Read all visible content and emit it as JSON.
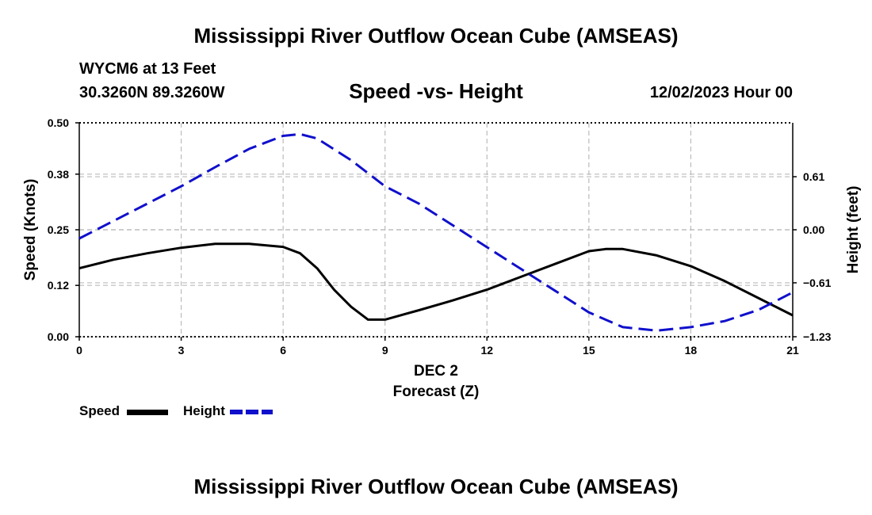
{
  "header": {
    "title_top": "Mississippi River Outflow Ocean Cube (AMSEAS)",
    "title_bottom": "Mississippi River Outflow Ocean Cube (AMSEAS)",
    "station": "WYCM6 at 13 Feet",
    "coords": "30.3260N  89.3260W",
    "subtitle": "Speed -vs- Height",
    "date": "12/02/2023 Hour 00"
  },
  "legend": {
    "speed_label": "Speed",
    "height_label": "Height"
  },
  "colors": {
    "speed": "#000000",
    "height": "#1010cc",
    "grid": "#bbbbbb"
  },
  "chart_data": {
    "type": "line",
    "title": "Speed -vs- Height",
    "xlabel": "Forecast (Z)",
    "xlabel_day": "DEC 2",
    "ylabel": "Speed (Knots)",
    "y2label": "Height (feet)",
    "xlim": [
      0,
      21
    ],
    "ylim": [
      0,
      0.5
    ],
    "y2lim": [
      -1.23,
      1.23
    ],
    "xticks": [
      0,
      3,
      6,
      9,
      12,
      15,
      18,
      21
    ],
    "xtick_labels": [
      "0",
      "3",
      "6",
      "9",
      "12",
      "15",
      "18",
      "21"
    ],
    "yticks": [
      0.0,
      0.12,
      0.25,
      0.38,
      0.5
    ],
    "ytick_labels": [
      "0.00",
      "0.12",
      "0.25",
      "0.38",
      "0.50"
    ],
    "y2ticks": [
      -1.23,
      -0.61,
      0.0,
      0.61
    ],
    "y2tick_labels": [
      "−1.23",
      "−0.61",
      "0.00",
      "0.61"
    ],
    "series": [
      {
        "name": "Speed",
        "axis": "left",
        "style": "solid",
        "x": [
          0,
          1,
          2,
          3,
          4,
          5,
          6,
          6.5,
          7,
          7.5,
          8,
          8.5,
          9,
          10,
          11,
          12,
          13,
          14,
          15,
          15.5,
          16,
          17,
          18,
          19,
          20,
          21
        ],
        "y": [
          0.16,
          0.18,
          0.195,
          0.208,
          0.217,
          0.217,
          0.21,
          0.195,
          0.16,
          0.11,
          0.07,
          0.04,
          0.04,
          0.062,
          0.085,
          0.11,
          0.14,
          0.17,
          0.2,
          0.205,
          0.205,
          0.19,
          0.165,
          0.13,
          0.09,
          0.05
        ]
      },
      {
        "name": "Height",
        "axis": "right",
        "style": "dashed",
        "x": [
          0,
          1,
          2,
          3,
          4,
          5,
          6,
          6.5,
          7,
          8,
          9,
          10,
          11,
          12,
          13,
          14,
          15,
          16,
          17,
          18,
          19,
          20,
          21
        ],
        "y": [
          -0.1,
          0.1,
          0.3,
          0.5,
          0.72,
          0.93,
          1.08,
          1.1,
          1.05,
          0.8,
          0.5,
          0.3,
          0.05,
          -0.2,
          -0.45,
          -0.7,
          -0.95,
          -1.12,
          -1.16,
          -1.12,
          -1.05,
          -0.92,
          -0.72
        ]
      }
    ]
  }
}
